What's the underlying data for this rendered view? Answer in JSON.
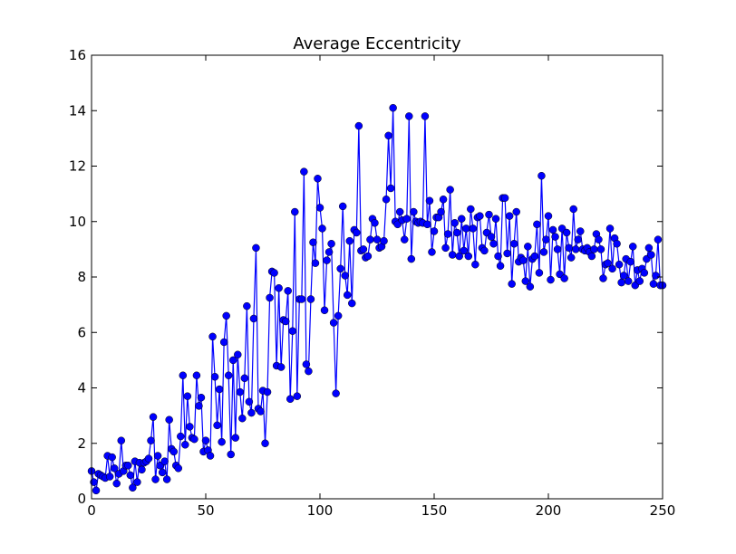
{
  "chart_data": {
    "type": "line",
    "title": "Average Eccentricity",
    "x": [
      0,
      1,
      2,
      3,
      4,
      5,
      6,
      7,
      8,
      9,
      10,
      11,
      12,
      13,
      14,
      15,
      16,
      17,
      18,
      19,
      20,
      21,
      22,
      23,
      24,
      25,
      26,
      27,
      28,
      29,
      30,
      31,
      32,
      33,
      34,
      35,
      36,
      37,
      38,
      39,
      40,
      41,
      42,
      43,
      44,
      45,
      46,
      47,
      48,
      49,
      50,
      51,
      52,
      53,
      54,
      55,
      56,
      57,
      58,
      59,
      60,
      61,
      62,
      63,
      64,
      65,
      66,
      67,
      68,
      69,
      70,
      71,
      72,
      73,
      74,
      75,
      76,
      77,
      78,
      79,
      80,
      81,
      82,
      83,
      84,
      85,
      86,
      87,
      88,
      89,
      90,
      91,
      92,
      93,
      94,
      95,
      96,
      97,
      98,
      99,
      100,
      101,
      102,
      103,
      104,
      105,
      106,
      107,
      108,
      109,
      110,
      111,
      112,
      113,
      114,
      115,
      116,
      117,
      118,
      119,
      120,
      121,
      122,
      123,
      124,
      125,
      126,
      127,
      128,
      129,
      130,
      131,
      132,
      133,
      134,
      135,
      136,
      137,
      138,
      139,
      140,
      141,
      142,
      143,
      144,
      145,
      146,
      147,
      148,
      149,
      150,
      151,
      152,
      153,
      154,
      155,
      156,
      157,
      158,
      159,
      160,
      161,
      162,
      163,
      164,
      165,
      166,
      167,
      168,
      169,
      170,
      171,
      172,
      173,
      174,
      175,
      176,
      177,
      178,
      179,
      180,
      181,
      182,
      183,
      184,
      185,
      186,
      187,
      188,
      189,
      190,
      191,
      192,
      193,
      194,
      195,
      196,
      197,
      198,
      199,
      200,
      201,
      202,
      203,
      204,
      205,
      206,
      207,
      208,
      209,
      210,
      211,
      212,
      213,
      214,
      215,
      216,
      217,
      218,
      219,
      220,
      221,
      222,
      223,
      224,
      225,
      226,
      227,
      228,
      229,
      230,
      231,
      232,
      233,
      234,
      235,
      236,
      237,
      238,
      239,
      240,
      241,
      242,
      243,
      244,
      245,
      246,
      247,
      248,
      249,
      250
    ],
    "values": [
      1.0,
      0.6,
      0.3,
      0.9,
      0.85,
      0.8,
      0.75,
      1.55,
      0.8,
      1.5,
      1.1,
      0.55,
      0.9,
      2.1,
      1.0,
      1.2,
      1.2,
      0.85,
      0.4,
      1.35,
      0.6,
      1.3,
      1.05,
      1.3,
      1.35,
      1.45,
      2.1,
      2.95,
      0.7,
      1.55,
      1.2,
      0.95,
      1.35,
      0.7,
      2.85,
      1.8,
      1.7,
      1.2,
      1.1,
      2.25,
      4.45,
      1.95,
      3.7,
      2.6,
      2.2,
      2.15,
      4.45,
      3.35,
      3.65,
      1.7,
      2.1,
      1.75,
      1.55,
      5.85,
      4.4,
      2.65,
      3.95,
      2.05,
      5.65,
      6.6,
      4.45,
      1.6,
      5.0,
      2.2,
      5.2,
      3.85,
      2.9,
      4.35,
      6.95,
      3.5,
      3.1,
      6.5,
      9.05,
      3.25,
      3.15,
      3.9,
      2.0,
      3.85,
      7.25,
      8.2,
      8.15,
      4.8,
      7.6,
      4.75,
      6.45,
      6.4,
      7.5,
      3.6,
      6.05,
      10.35,
      3.7,
      7.2,
      7.2,
      11.8,
      4.85,
      4.6,
      7.2,
      9.25,
      8.5,
      11.55,
      10.5,
      9.75,
      6.8,
      8.6,
      8.9,
      9.2,
      6.35,
      3.8,
      6.6,
      8.3,
      10.55,
      8.05,
      7.35,
      9.3,
      7.05,
      9.7,
      9.6,
      13.45,
      8.95,
      9.0,
      8.7,
      8.75,
      9.35,
      10.1,
      9.95,
      9.35,
      9.05,
      9.1,
      9.3,
      10.8,
      13.1,
      11.2,
      14.1,
      10.0,
      9.9,
      10.35,
      10.05,
      9.35,
      10.1,
      13.8,
      8.65,
      10.35,
      10.0,
      9.95,
      10.0,
      9.95,
      13.8,
      9.9,
      10.75,
      8.9,
      9.65,
      10.15,
      10.15,
      10.35,
      10.8,
      9.05,
      9.55,
      11.15,
      8.8,
      9.95,
      9.6,
      8.75,
      10.1,
      8.95,
      9.75,
      8.75,
      10.45,
      9.75,
      8.45,
      10.15,
      10.2,
      9.05,
      8.95,
      9.6,
      10.25,
      9.45,
      9.2,
      10.1,
      8.75,
      8.4,
      10.85,
      10.85,
      8.85,
      10.2,
      7.75,
      9.2,
      10.35,
      8.55,
      8.7,
      8.6,
      7.85,
      9.1,
      7.65,
      8.65,
      8.75,
      9.9,
      8.15,
      11.65,
      8.9,
      9.35,
      10.2,
      7.9,
      9.7,
      9.45,
      9.0,
      8.1,
      9.75,
      7.95,
      9.6,
      9.05,
      8.7,
      10.45,
      9.0,
      9.35,
      9.65,
      9.0,
      8.95,
      9.05,
      8.9,
      8.75,
      9.0,
      9.55,
      9.35,
      9.0,
      7.95,
      8.45,
      8.5,
      9.75,
      8.3,
      9.4,
      9.2,
      8.45,
      7.8,
      8.05,
      8.65,
      7.85,
      8.55,
      9.1,
      7.7,
      8.25,
      7.85,
      8.3,
      8.15,
      8.65,
      9.05,
      8.8,
      7.75,
      8.05,
      9.35,
      7.7,
      7.7
    ],
    "color": "#0000ff",
    "xlim": [
      0,
      250
    ],
    "xticks": [
      0,
      50,
      100,
      150,
      200,
      250
    ],
    "ylim": [
      0,
      16
    ],
    "yticks": [
      0,
      2,
      4,
      6,
      8,
      10,
      12,
      14,
      16
    ]
  }
}
